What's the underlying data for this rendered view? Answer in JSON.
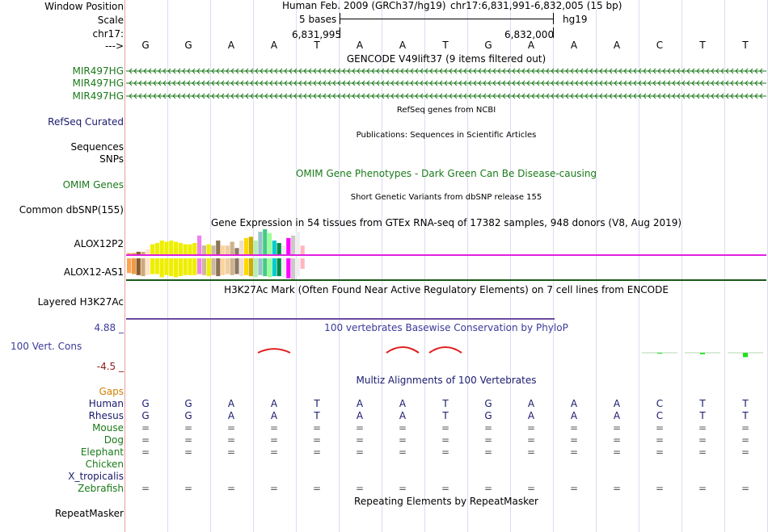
{
  "ruler": {
    "window_position_label": "Window Position",
    "scale_label": "Scale",
    "chrom_label": "chr17:",
    "arrow_label": "--->",
    "assembly": "Human Feb. 2009 (GRCh37/hg19)",
    "position": "chr17:6,831,991-6,832,005 (15 bp)",
    "scale_value": "5 bases",
    "db": "hg19",
    "pos_left": "6,831,995",
    "pos_right": "6,832,000"
  },
  "bases": [
    "G",
    "G",
    "A",
    "A",
    "T",
    "A",
    "A",
    "T",
    "G",
    "A",
    "A",
    "A",
    "C",
    "T",
    "T"
  ],
  "tracks": {
    "gencode_title": "GENCODE V49lift37 (9 items filtered out)",
    "gencode_genes": [
      "MIR497HG",
      "MIR497HG",
      "MIR497HG"
    ],
    "refseq_title": "RefSeq genes from NCBI",
    "refseq_label": "RefSeq Curated",
    "pubs_title": "Publications: Sequences in Scientific Articles",
    "sequences_label": "Sequences",
    "snps_label": "SNPs",
    "omim_title": "OMIM Gene Phenotypes - Dark Green Can Be Disease-causing",
    "omim_label": "OMIM Genes",
    "dbsnp_title": "Short Genetic Variants from dbSNP release 155",
    "dbsnp_label": "Common dbSNP(155)",
    "gtex_title": "Gene Expression in 54 tissues from GTEx RNA-seq of 17382 samples, 948 donors (V8, Aug 2019)",
    "gtex_gene1": "ALOX12P2",
    "gtex_gene2": "ALOX12-AS1",
    "h3k_title": "H3K27Ac Mark (Often Found Near Active Regulatory Elements) on 7 cell lines from ENCODE",
    "h3k_label": "Layered H3K27Ac",
    "phylop_title": "100 vertebrates Basewise Conservation by PhyloP",
    "phylop_label": "100 Vert. Cons",
    "phylop_max": "4.88 _",
    "phylop_min": "-4.5 _",
    "multiz_title": "Multiz Alignments of 100 Vertebrates",
    "gaps_label": "Gaps",
    "repeat_title": "Repeating Elements by RepeatMasker",
    "repeat_label": "RepeatMasker"
  },
  "species": [
    {
      "name": "Human",
      "seq": [
        "G",
        "G",
        "A",
        "A",
        "T",
        "A",
        "A",
        "T",
        "G",
        "A",
        "A",
        "A",
        "C",
        "T",
        "T"
      ]
    },
    {
      "name": "Rhesus",
      "seq": [
        "G",
        "G",
        "A",
        "A",
        "T",
        "A",
        "A",
        "T",
        "G",
        "A",
        "A",
        "A",
        "C",
        "T",
        "T"
      ]
    },
    {
      "name": "Mouse",
      "seq": [
        "=",
        "=",
        "=",
        "=",
        "=",
        "=",
        "=",
        "=",
        "=",
        "=",
        "=",
        "=",
        "=",
        "=",
        "="
      ]
    },
    {
      "name": "Dog",
      "seq": [
        "=",
        "=",
        "=",
        "=",
        "=",
        "=",
        "=",
        "=",
        "=",
        "=",
        "=",
        "=",
        "=",
        "=",
        "="
      ]
    },
    {
      "name": "Elephant",
      "seq": [
        "=",
        "=",
        "=",
        "=",
        "=",
        "=",
        "=",
        "=",
        "=",
        "=",
        "=",
        "=",
        "=",
        "=",
        "="
      ]
    },
    {
      "name": "Chicken",
      "seq": []
    },
    {
      "name": "X_tropicalis",
      "seq": []
    },
    {
      "name": "Zebrafish",
      "seq": [
        "=",
        "=",
        "=",
        "=",
        "=",
        "=",
        "=",
        "=",
        "=",
        "=",
        "=",
        "=",
        "=",
        "=",
        "="
      ]
    }
  ],
  "colors": {
    "gene_green": "#1a7a1a",
    "navy": "#1a1a6e",
    "phylop_blue": "#3a3a9a",
    "phylop_red": "#8b1a1a",
    "gaps_orange": "#d08000",
    "magenta": "#e020e0"
  },
  "gtex_top_colors": [
    "#ffa54f",
    "#ee9a49",
    "#8b5a2b",
    "#cdaa7d",
    "#ffe4c4",
    "#eeee00",
    "#eeee00",
    "#eeee00",
    "#eeee00",
    "#eeee00",
    "#eeee00",
    "#eeee00",
    "#eeee00",
    "#eeee00",
    "#eeee00",
    "#ee82ee",
    "#cdb79e",
    "#eeee00",
    "#cdb79e",
    "#8b7355",
    "#ffd39b",
    "#eecfa1",
    "#cdb38b",
    "#8b7765",
    "#eedfcc",
    "#ffd700",
    "#cdad00",
    "#b4eeb4",
    "#9ac0cd",
    "#43cd80",
    "#9aff9a",
    "#00cdcd",
    "#008b45",
    "#eeeeee",
    "#ff00ff",
    "#cdc9c9",
    "#eeeeee",
    "#ffb6c1"
  ],
  "gtex_top_values": [
    0.05,
    0.05,
    0.1,
    0.1,
    0.2,
    0.4,
    0.45,
    0.55,
    0.5,
    0.55,
    0.5,
    0.45,
    0.4,
    0.4,
    0.45,
    0.75,
    0.35,
    0.4,
    0.35,
    0.55,
    0.35,
    0.35,
    0.5,
    0.25,
    0.55,
    0.65,
    0.7,
    0.55,
    0.9,
    1.0,
    0.85,
    0.55,
    0.45,
    0.35,
    0.65,
    0.75,
    0.9,
    0.35
  ],
  "gtex_bottom_values": [
    0.7,
    0.75,
    0.8,
    0.85,
    0.8,
    0.75,
    0.75,
    0.9,
    0.8,
    0.85,
    0.9,
    0.85,
    0.8,
    0.8,
    0.8,
    0.75,
    0.8,
    0.85,
    0.8,
    0.85,
    0.8,
    0.75,
    0.8,
    0.75,
    0.85,
    0.8,
    0.85,
    0.9,
    0.8,
    0.85,
    0.9,
    0.85,
    0.85,
    0.9,
    0.95,
    1.0,
    0.85,
    0.5
  ],
  "phylop_peaks": [
    {
      "pos": 3,
      "value": 0.7
    },
    {
      "pos": 6,
      "value": 1.0
    },
    {
      "pos": 7,
      "value": 1.0
    }
  ],
  "phylop_tail": [
    {
      "pos": 12,
      "value": -0.1
    },
    {
      "pos": 13,
      "value": -0.3
    },
    {
      "pos": 14,
      "value": -0.9
    }
  ]
}
